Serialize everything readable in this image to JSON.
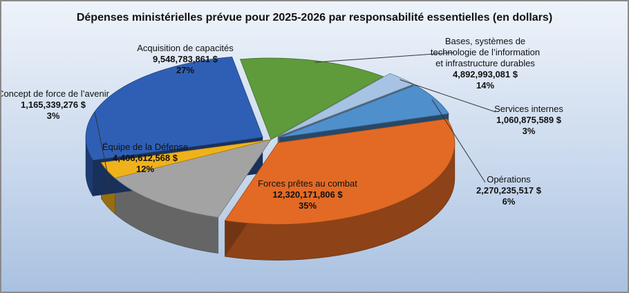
{
  "chart_data": {
    "type": "pie",
    "title": "Dépenses ministérielles prévue pour 2025-2026 par responsabilité essentielles (en dollars)",
    "start_angle_deg": -100,
    "slices": [
      {
        "label": [
          "Bases, systèmes de",
          "technologie de l’information",
          "et infrastructure durables"
        ],
        "value": 4892993081,
        "value_label": "4,892,993,081 $",
        "percent_label": "14%",
        "color": "#5f9b3a",
        "exploded": false
      },
      {
        "label": [
          "Services internes"
        ],
        "value": 1060875589,
        "value_label": "1,060,875,589 $",
        "percent_label": "3%",
        "color": "#a6c3e3",
        "exploded": true
      },
      {
        "label": [
          "Opérations"
        ],
        "value": 2270235517,
        "value_label": "2,270,235,517 $",
        "percent_label": "6%",
        "color": "#4f8fcc",
        "exploded": true
      },
      {
        "label": [
          "Forces prêtes au combat"
        ],
        "value": 12320171806,
        "value_label": "12,320,171,806 $",
        "percent_label": "35%",
        "color": "#e36a25",
        "exploded": true
      },
      {
        "label": [
          "Équipe de la Défense"
        ],
        "value": 4406612568,
        "value_label": "4,406,612,568 $",
        "percent_label": "12%",
        "color": "#a3a3a3",
        "exploded": false
      },
      {
        "label": [
          "Concept de force de l’avenir"
        ],
        "value": 1165339276,
        "value_label": "1,165,339,276 $",
        "percent_label": "3%",
        "color": "#f0b21b",
        "exploded": false
      },
      {
        "label": [
          "Acquisition de capacités"
        ],
        "value": 9548783861,
        "value_label": "9,548,783,861 $",
        "percent_label": "27%",
        "color": "#2f5fb4",
        "exploded": true
      }
    ]
  }
}
